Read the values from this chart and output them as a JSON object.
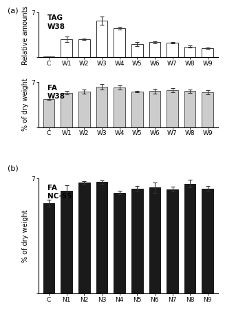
{
  "panel_a_tag": {
    "title": "TAG\nW38",
    "ylabel": "Relative amounts",
    "categories": [
      "C",
      "W1",
      "W2",
      "W3",
      "W4",
      "W5",
      "W6",
      "W7",
      "W8",
      "W9"
    ],
    "values": [
      0.15,
      2.85,
      2.82,
      5.75,
      4.55,
      2.1,
      2.35,
      2.3,
      1.7,
      1.45
    ],
    "errors": [
      0.05,
      0.4,
      0.1,
      0.65,
      0.2,
      0.35,
      0.15,
      0.1,
      0.2,
      0.1
    ],
    "bar_color": "white",
    "bar_edgecolor": "#333333",
    "ylim": [
      0,
      7
    ],
    "yticks": [
      0,
      7
    ]
  },
  "panel_a_fa": {
    "title": "FA\nW38",
    "ylabel": "% of dry weight",
    "categories": [
      "C",
      "W1",
      "W2",
      "W3",
      "W4",
      "W5",
      "W6",
      "W7",
      "W8",
      "W9"
    ],
    "values": [
      4.3,
      5.35,
      5.5,
      6.3,
      6.15,
      5.55,
      5.6,
      5.75,
      5.6,
      5.45
    ],
    "errors": [
      0.1,
      0.25,
      0.3,
      0.4,
      0.35,
      0.1,
      0.35,
      0.3,
      0.25,
      0.3
    ],
    "bar_color": "#cccccc",
    "bar_edgecolor": "#555555",
    "ylim": [
      0,
      7
    ],
    "yticks": [
      0,
      7
    ]
  },
  "panel_b_fa": {
    "title": "FA\nNC-55",
    "ylabel": "% of dry weight",
    "categories": [
      "C",
      "N1",
      "N2",
      "N3",
      "N4",
      "N5",
      "N6",
      "N7",
      "N8",
      "N9"
    ],
    "values": [
      5.5,
      6.25,
      6.75,
      6.8,
      6.15,
      6.4,
      6.45,
      6.35,
      6.7,
      6.4
    ],
    "errors": [
      0.2,
      0.35,
      0.1,
      0.1,
      0.1,
      0.15,
      0.3,
      0.15,
      0.25,
      0.15
    ],
    "bar_color": "#1a1a1a",
    "bar_edgecolor": "#1a1a1a",
    "ylim": [
      0,
      7
    ],
    "yticks": [
      0,
      7
    ]
  },
  "panel_a_label": "(a)",
  "panel_b_label": "(b)",
  "fig_bg": "white",
  "bar_width": 0.65,
  "errorbar_color": "#333333",
  "errorbar_capsize": 2,
  "errorbar_linewidth": 0.8,
  "tick_fontsize": 6.5,
  "label_fontsize": 7,
  "title_fontsize": 7.5
}
